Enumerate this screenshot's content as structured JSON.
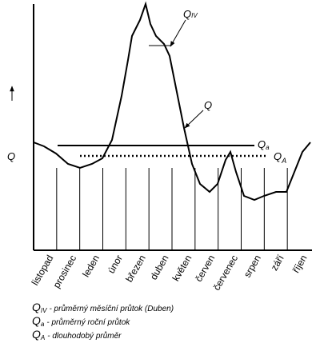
{
  "axis_label": "Q",
  "months": [
    "listopad",
    "prosinec",
    "leden",
    "únor",
    "březen",
    "duben",
    "květen",
    "červen",
    "červenec",
    "srpen",
    "září",
    "říjen"
  ],
  "annotations": {
    "q_iv": {
      "symbol": "Q",
      "subscript": "IV"
    },
    "q": "Q",
    "q_a": {
      "symbol": "Q",
      "subscript": "a"
    },
    "q_big_a": {
      "symbol": "Q",
      "subscript": "A"
    }
  },
  "legend": [
    {
      "symbol": "Q",
      "subscript": "IV",
      "text": "- průměrný měsíční průtok (Duben)"
    },
    {
      "symbol": "Q",
      "subscript": "a",
      "text": "- průměrný roční průtok"
    },
    {
      "symbol": "Q",
      "subscript": "A",
      "text": "- dlouhodobý průměr"
    }
  ]
}
